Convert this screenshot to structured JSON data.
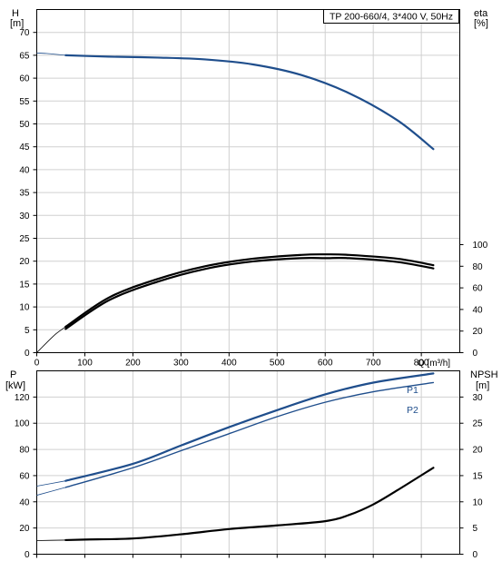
{
  "chart_data": [
    {
      "type": "line",
      "title": "TP 200-660/4, 3*400 V, 50Hz",
      "xlabel": "Q [m³/h]",
      "ylabel_left_top": "H",
      "ylabel_left_bottom": "[m]",
      "ylabel_right_top": "eta",
      "ylabel_right_bottom": "[%]",
      "xlim": [
        0,
        880
      ],
      "ylim_left": [
        0,
        75
      ],
      "ylim_right": [
        0,
        100
      ],
      "x_ticks": [
        0,
        100,
        200,
        300,
        400,
        500,
        600,
        700,
        800
      ],
      "x_tick_labels": [
        "0",
        "100",
        "200",
        "300",
        "400",
        "500",
        "600",
        "700",
        "800"
      ],
      "y_left_ticks": [
        0,
        5,
        10,
        15,
        20,
        25,
        30,
        35,
        40,
        45,
        50,
        55,
        60,
        65,
        70
      ],
      "y_left_tick_labels": [
        "0",
        "5",
        "10",
        "15",
        "20",
        "25",
        "30",
        "35",
        "40",
        "45",
        "50",
        "55",
        "60",
        "65",
        "70"
      ],
      "y_right_ticks": [
        0,
        20,
        40,
        60,
        80,
        100
      ],
      "y_right_tick_labels": [
        "0",
        "20",
        "40",
        "60",
        "80",
        "100"
      ],
      "grid": true,
      "series": [
        {
          "role": "head",
          "axis": "left",
          "color": "#1f4e8c",
          "extension_x": [
            0,
            20,
            40,
            60
          ],
          "extension_y": [
            65.5,
            65.4,
            65.2,
            65.0
          ],
          "x": [
            60,
            150,
            250,
            350,
            450,
            550,
            650,
            750,
            825
          ],
          "y": [
            65.0,
            64.7,
            64.5,
            64.1,
            63.0,
            60.7,
            56.7,
            50.8,
            44.5
          ]
        },
        {
          "role": "eta-upper",
          "axis": "right",
          "color": "#000000",
          "extension_x": [
            0,
            20,
            40,
            60
          ],
          "extension_y": [
            0,
            9,
            17.5,
            24
          ],
          "x": [
            60,
            150,
            250,
            350,
            450,
            550,
            600,
            650,
            750,
            825
          ],
          "y": [
            24,
            51,
            68,
            80,
            87,
            90.5,
            91,
            90.5,
            87,
            81
          ]
        },
        {
          "role": "eta-lower",
          "axis": "right",
          "color": "#000000",
          "x": [
            60,
            150,
            250,
            350,
            450,
            550,
            600,
            650,
            750,
            825
          ],
          "y": [
            22,
            48.5,
            65.5,
            77.5,
            84.5,
            87.5,
            87.5,
            87.5,
            84,
            78
          ]
        }
      ]
    },
    {
      "type": "line",
      "xlabel": "",
      "ylabel_left_top": "P",
      "ylabel_left_bottom": "[kW]",
      "ylabel_right_top": "NPSH",
      "ylabel_right_bottom": "[m]",
      "xlim": [
        0,
        880
      ],
      "ylim_left": [
        0,
        140
      ],
      "ylim_right": [
        0,
        35
      ],
      "y_left_ticks": [
        0,
        20,
        40,
        60,
        80,
        100,
        120
      ],
      "y_left_tick_labels": [
        "0",
        "20",
        "40",
        "60",
        "80",
        "100",
        "120"
      ],
      "y_right_ticks": [
        0,
        5,
        10,
        15,
        20,
        25,
        30
      ],
      "y_right_tick_labels": [
        "0",
        "5",
        "10",
        "15",
        "20",
        "25",
        "30"
      ],
      "grid": true,
      "series": [
        {
          "name": "P1",
          "axis": "left",
          "color": "#1f4e8c",
          "extension_x": [
            0,
            60
          ],
          "extension_y": [
            52,
            56
          ],
          "x": [
            60,
            200,
            300,
            400,
            500,
            600,
            700,
            825
          ],
          "y": [
            56,
            69,
            83,
            97,
            110,
            122,
            131,
            138
          ]
        },
        {
          "name": "P2",
          "axis": "left",
          "color": "#1f4e8c",
          "extension_x": [
            0,
            60
          ],
          "extension_y": [
            45,
            51
          ],
          "x": [
            60,
            200,
            300,
            400,
            500,
            600,
            700,
            825
          ],
          "y": [
            51,
            66,
            79,
            92,
            105,
            116,
            124,
            131
          ]
        },
        {
          "role": "NPSH",
          "axis": "right",
          "color": "#000000",
          "extension_x": [
            0,
            60
          ],
          "extension_y": [
            2.6,
            2.7
          ],
          "x": [
            60,
            100,
            200,
            300,
            400,
            500,
            600,
            650,
            700,
            750,
            825
          ],
          "y": [
            2.7,
            2.8,
            3.0,
            3.8,
            4.8,
            5.5,
            6.3,
            7.5,
            9.5,
            12.2,
            16.5
          ]
        }
      ]
    }
  ]
}
